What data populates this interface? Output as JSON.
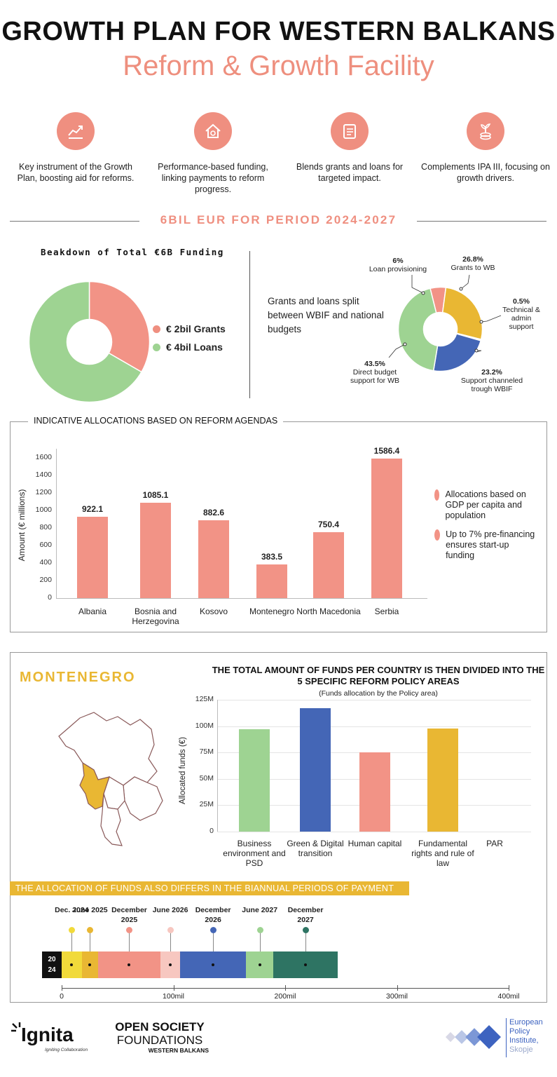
{
  "header": {
    "title": "GROWTH PLAN FOR WESTERN BALKANS",
    "subtitle": "Reform & Growth Facility"
  },
  "features": [
    {
      "icon": "chart-icon",
      "text": "Key instrument of the Growth Plan, boosting aid for reforms."
    },
    {
      "icon": "house-coin-icon",
      "text": "Performance-based funding, linking payments to reform progress."
    },
    {
      "icon": "clipboard-icon",
      "text": "Blends grants and loans for targeted impact."
    },
    {
      "icon": "plant-coins-icon",
      "text": "Complements IPA III, focusing on growth drivers."
    }
  ],
  "period_heading": "6BIL EUR FOR PERIOD 2024-2027",
  "breakdown": {
    "title": "Beakdown of Total €6B Funding",
    "legend": [
      {
        "label": "€ 2bil Grants",
        "color": "#ef8f80"
      },
      {
        "label": "€ 4bil Loans",
        "color": "#9ed392"
      }
    ],
    "split_text": "Grants and loans split between WBIF and national budgets"
  },
  "colors": {
    "salmon": "#f29386",
    "green": "#9ed392",
    "yellow": "#e9b733",
    "blue": "#4466b6",
    "teal": "#2e7463",
    "pink": "#f7c7c0",
    "bright_yellow": "#f1da3a"
  },
  "allocations": {
    "heading": "INDICATIVE ALLOCATIONS BASED ON REFORM AGENDAS",
    "notes": [
      "Allocations based on GDP per capita and population",
      "Up to 7% pre-financing ensures start-up funding"
    ]
  },
  "montenegro": {
    "heading": "MONTENEGRO",
    "chart_title": "THE TOTAL AMOUNT OF FUNDS PER COUNTRY IS THEN DIVIDED INTO THE 5 SPECIFIC REFORM POLICY AREAS",
    "chart_subtitle": "(Funds allocation by the Policy area)",
    "payments_banner": "THE ALLOCATION OF FUNDS ALSO DIFFERS IN THE BIANNUAL PERIODS OF PAYMENT"
  },
  "timeline": {
    "year_badge_top": "20",
    "year_badge_bottom": "24",
    "points": [
      {
        "label": "Dec. 2024",
        "color": "#f1da3a"
      },
      {
        "label": "June 2025",
        "color": "#e9b733"
      },
      {
        "label": "December 2025",
        "color": "#f29386"
      },
      {
        "label": "June 2026",
        "color": "#f7c7c0"
      },
      {
        "label": "December 2026",
        "color": "#4466b6"
      },
      {
        "label": "June 2027",
        "color": "#9ed392"
      },
      {
        "label": "December 2027",
        "color": "#2e7463"
      }
    ],
    "segments_mil": [
      18,
      14.5,
      56,
      17.5,
      59,
      24.5,
      57.5
    ],
    "axis_ticks": [
      "0",
      "100mil",
      "200mil",
      "300mil",
      "400mil"
    ]
  },
  "footer": {
    "ignita": "Ignita",
    "ignita_tag": "Igniting Collaboration",
    "osf_line1": "OPEN SOCIETY",
    "osf_line2": "FOUNDATIONS",
    "osf_line3": "WESTERN BALKANS",
    "epi_line1": "European",
    "epi_line2": "Policy",
    "epi_line3": "Institute,",
    "epi_line4": "Skopje"
  },
  "chart_data": [
    {
      "type": "pie",
      "title": "Beakdown of Total €6B Funding",
      "categories": [
        "€ 2bil Grants",
        "€ 4bil Loans"
      ],
      "values": [
        2,
        4
      ]
    },
    {
      "type": "pie",
      "categories": [
        "Loan provisioning",
        "Grants to WB",
        "Technical & admin support",
        "Support channeled trough WBIF",
        "Direct budget support for WB"
      ],
      "values": [
        6,
        26.8,
        0.5,
        23.2,
        43.5
      ],
      "labels": [
        "6%",
        "26.8%",
        "0.5%",
        "23.2%",
        "43.5%"
      ],
      "colors": [
        "#f29386",
        "#e9b733",
        "#f7c7c0",
        "#4466b6",
        "#9ed392"
      ]
    },
    {
      "type": "bar",
      "categories": [
        "Albania",
        "Bosnia and Herzegovina",
        "Kosovo",
        "Montenegro",
        "North Macedonia",
        "Serbia"
      ],
      "values": [
        922.1,
        1085.1,
        882.6,
        383.5,
        750.4,
        1586.4
      ],
      "value_labels": [
        "922.1",
        "1085.1",
        "882.6",
        "383.5",
        "750.4",
        "1586.4"
      ],
      "ylabel": "Amount (€ millions)",
      "ylim": [
        0,
        1700
      ],
      "yticks": [
        "0",
        "200",
        "400",
        "600",
        "800",
        "1000",
        "1200",
        "1400",
        "1600"
      ]
    },
    {
      "type": "bar",
      "categories": [
        "Business environment and PSD",
        "Green & Digital transition",
        "Human capital",
        "Fundamental rights and rule of law",
        "PAR"
      ],
      "values": [
        97,
        117,
        75,
        97.5,
        0
      ],
      "colors": [
        "#9ed392",
        "#4466b6",
        "#f29386",
        "#e9b733",
        "#cccccc"
      ],
      "ylabel": "Allocated funds (€)",
      "ylim": [
        0,
        125
      ],
      "yticks": [
        "0",
        "25M",
        "50M",
        "75M",
        "100M",
        "125M"
      ]
    }
  ]
}
